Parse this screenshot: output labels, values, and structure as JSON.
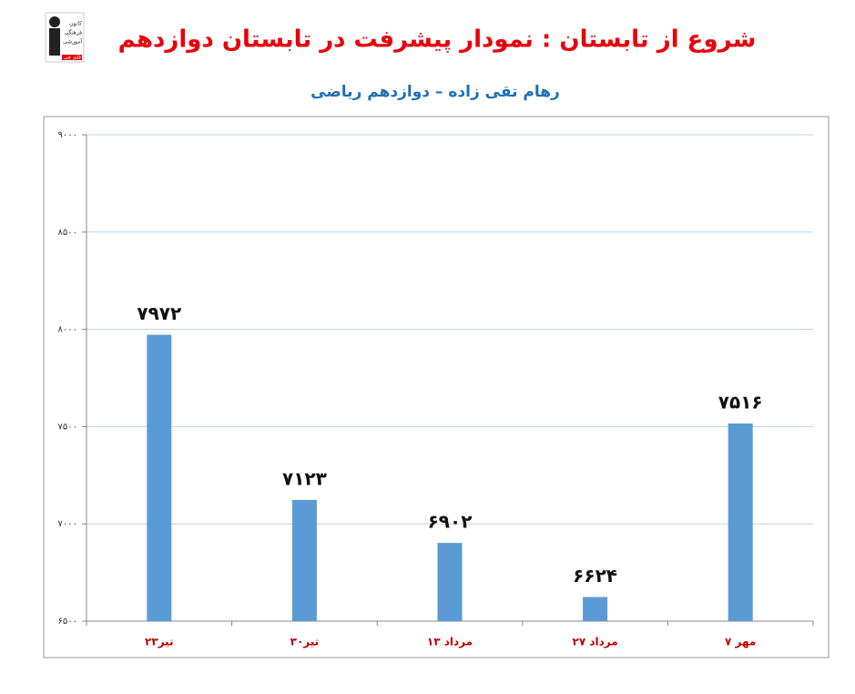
{
  "logo_text": [
    "کانون",
    "فرهنگی",
    "آموزشی",
    "قلم چی"
  ],
  "chart_data": {
    "type": "bar",
    "title": "شروع از تابستان : نمودار پیشرفت در تابستان دوازدهم",
    "subtitle": "رهام تقی زاده – دوازدهم ریاضی",
    "categories": [
      "۲۳تیر",
      "۳۰تیر",
      "۱۳ مرداد",
      "۲۷ مرداد",
      "۷ مهر"
    ],
    "values": [
      7972,
      7123,
      6902,
      6624,
      7516
    ],
    "value_labels": [
      "۷۹۷۲",
      "۷۱۲۳",
      "۶۹۰۲",
      "۶۶۲۴",
      "۷۵۱۶"
    ],
    "color": "#5b9bd5",
    "ylim": [
      6500,
      9000
    ],
    "yticks": [
      {
        "value": 6500,
        "label": "۶۵۰۰"
      },
      {
        "value": 7000,
        "label": "۷۰۰۰"
      },
      {
        "value": 7500,
        "label": "۷۵۰۰"
      },
      {
        "value": 8000,
        "label": "۸۰۰۰"
      },
      {
        "value": 8500,
        "label": "۸۵۰۰"
      },
      {
        "value": 9000,
        "label": "۹۰۰۰"
      }
    ],
    "grid": true
  }
}
